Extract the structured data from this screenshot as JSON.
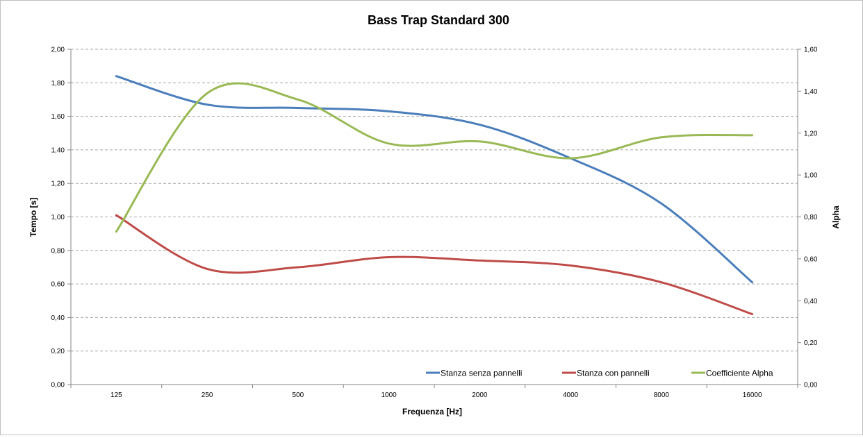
{
  "chart_data": {
    "type": "line",
    "title": "Bass Trap Standard 300",
    "xlabel": "Frequenza [Hz]",
    "ylabel": "Tempo [s]",
    "y2label": "Alpha",
    "categories": [
      "125",
      "250",
      "500",
      "1000",
      "2000",
      "4000",
      "8000",
      "16000"
    ],
    "ylim": [
      0,
      2
    ],
    "y_ticks": [
      "0,00",
      "0,20",
      "0,40",
      "0,60",
      "0,80",
      "1,00",
      "1,20",
      "1,40",
      "1,60",
      "1,80",
      "2,00"
    ],
    "y2lim": [
      0,
      1.6
    ],
    "y2_ticks": [
      "0,00",
      "0,20",
      "0,40",
      "0,60",
      "0,80",
      "1,00",
      "1,20",
      "1,40",
      "1,60"
    ],
    "grid": true,
    "legend_position": "bottom-right",
    "series": [
      {
        "name": "Stanza senza pannelli",
        "axis": "left",
        "color": "#4a7ebb",
        "values": [
          1.84,
          1.67,
          1.65,
          1.63,
          1.55,
          1.35,
          1.08,
          0.61
        ]
      },
      {
        "name": "Stanza con pannelli",
        "axis": "left",
        "color": "#be4b48",
        "values": [
          1.01,
          0.69,
          0.7,
          0.76,
          0.74,
          0.71,
          0.61,
          0.42
        ]
      },
      {
        "name": "Coefficiente Alpha",
        "axis": "right",
        "color": "#98b954",
        "values": [
          0.73,
          1.39,
          1.36,
          1.15,
          1.16,
          1.08,
          1.18,
          1.19
        ]
      }
    ]
  }
}
